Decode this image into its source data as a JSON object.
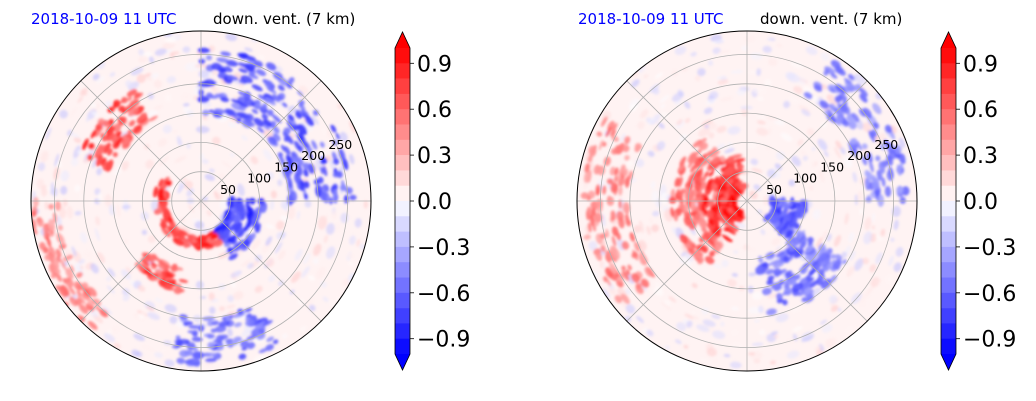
{
  "chart_data": [
    {
      "type": "heatmap",
      "projection": "polar",
      "title_left": "2018-10-09 11 UTC",
      "title_right": "down. vent. (7 km)",
      "radial_ticks": [
        "50",
        "100",
        "150",
        "200",
        "250"
      ],
      "radial_max": 290,
      "grid": true,
      "colorbar": {
        "ticks": [
          "0.9",
          "0.6",
          "0.3",
          "0.0",
          "−0.3",
          "−0.6",
          "−0.9"
        ],
        "range": [
          -1.0,
          1.0
        ],
        "extend": "both",
        "levels": 20,
        "cmap": "bwr"
      },
      "features": [
        {
          "r": [
            60,
            80
          ],
          "theta": [
            150,
            300
          ],
          "value": 0.9
        },
        {
          "r": [
            160,
            220
          ],
          "theta": [
            120,
            160
          ],
          "value": 0.9
        },
        {
          "r": [
            120,
            160
          ],
          "theta": [
            225,
            260
          ],
          "value": 0.8
        },
        {
          "r": [
            50,
            110
          ],
          "theta": [
            300,
            360
          ],
          "value": -0.9
        },
        {
          "r": [
            150,
            260
          ],
          "theta": [
            0,
            90
          ],
          "value": -0.8
        },
        {
          "r": [
            200,
            280
          ],
          "theta": [
            260,
            300
          ],
          "value": -0.7
        },
        {
          "r": [
            240,
            290
          ],
          "theta": [
            180,
            230
          ],
          "value": 0.6
        }
      ]
    },
    {
      "type": "heatmap",
      "projection": "polar",
      "title_left": "2018-10-09 11 UTC",
      "title_right": "down. vent. (7 km)",
      "radial_ticks": [
        "50",
        "100",
        "150",
        "200",
        "250"
      ],
      "radial_max": 290,
      "grid": true,
      "colorbar": {
        "ticks": [
          "0.9",
          "0.6",
          "0.3",
          "0.0",
          "−0.3",
          "−0.6",
          "−0.9"
        ],
        "range": [
          -1.0,
          1.0
        ],
        "extend": "both",
        "levels": 20,
        "cmap": "bwr"
      },
      "features": [
        {
          "r": [
            20,
            80
          ],
          "theta": [
            100,
            250
          ],
          "value": 0.95
        },
        {
          "r": [
            80,
            130
          ],
          "theta": [
            120,
            240
          ],
          "value": 0.7
        },
        {
          "r": [
            40,
            100
          ],
          "theta": [
            320,
            360
          ],
          "value": -0.8
        },
        {
          "r": [
            100,
            200
          ],
          "theta": [
            280,
            330
          ],
          "value": -0.7
        },
        {
          "r": [
            200,
            280
          ],
          "theta": [
            0,
            60
          ],
          "value": -0.6
        },
        {
          "r": [
            200,
            280
          ],
          "theta": [
            150,
            220
          ],
          "value": 0.6
        }
      ]
    }
  ]
}
